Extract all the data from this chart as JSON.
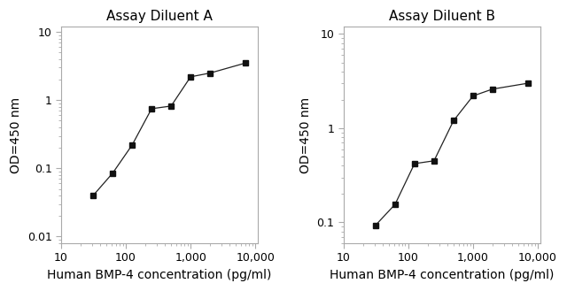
{
  "chart_A": {
    "title": "Assay Diluent A",
    "x": [
      31.25,
      62.5,
      125,
      250,
      500,
      1000,
      2000,
      7000
    ],
    "y": [
      0.04,
      0.085,
      0.22,
      0.75,
      0.82,
      2.2,
      2.5,
      3.5
    ],
    "xlim": [
      15,
      11000
    ],
    "ylim": [
      0.008,
      12
    ],
    "yticks": [
      0.01,
      0.1,
      1,
      10
    ],
    "xticks": [
      10,
      100,
      1000,
      10000
    ],
    "xlabel": "Human BMP-4 concentration (pg/ml)",
    "ylabel": "OD=450 nm"
  },
  "chart_B": {
    "title": "Assay Diluent B",
    "x": [
      31.25,
      62.5,
      125,
      250,
      500,
      1000,
      2000,
      7000
    ],
    "y": [
      0.093,
      0.155,
      0.42,
      0.45,
      1.2,
      2.2,
      2.6,
      3.0
    ],
    "xlim": [
      15,
      11000
    ],
    "ylim": [
      0.06,
      12
    ],
    "yticks": [
      0.1,
      1,
      10
    ],
    "xticks": [
      10,
      100,
      1000,
      10000
    ],
    "xlabel": "Human BMP-4 concentration (pg/ml)",
    "ylabel": "OD=450 nm"
  },
  "line_color": "#222222",
  "marker": "s",
  "marker_size": 4,
  "marker_facecolor": "#111111",
  "bg_color": "#ffffff",
  "title_fontsize": 11,
  "label_fontsize": 10,
  "tick_fontsize": 9,
  "spine_color": "#aaaaaa"
}
